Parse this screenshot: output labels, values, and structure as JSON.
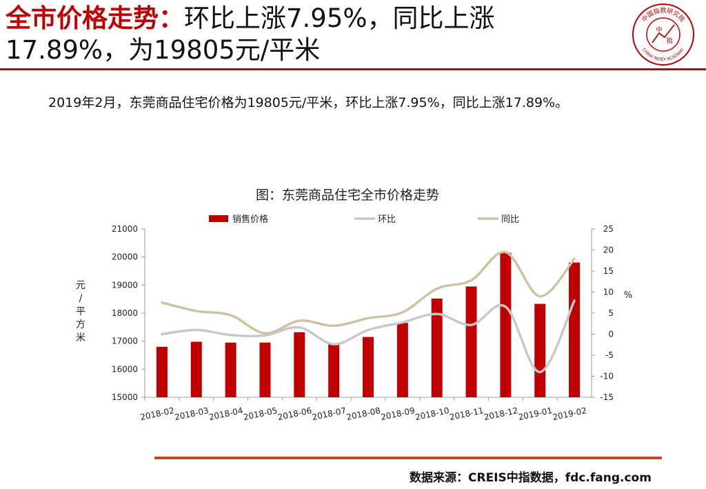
{
  "header": {
    "title_highlight": "全市价格走势：",
    "title_rest_line1": "环比上涨7.95%，同比上涨",
    "title_line2": "17.89%，为19805元/平米",
    "logo_text_top": "中国指数研究院",
    "logo_text_bottom": "CHINA INDEX ACADEMY",
    "logo_center_chars": [
      "中",
      "指"
    ],
    "accent_color": "#c00000"
  },
  "summary": "2019年2月，东莞商品住宅价格为19805元/平米，环比上涨7.95%，同比上涨17.89%。",
  "chart_data": {
    "type": "bar",
    "title": "图：东莞商品住宅全市价格走势",
    "categories": [
      "2018-02",
      "2018-03",
      "2018-04",
      "2018-05",
      "2018-06",
      "2018-07",
      "2018-08",
      "2018-09",
      "2018-10",
      "2018-11",
      "2018-12",
      "2019-01",
      "2019-02"
    ],
    "series": [
      {
        "name": "销售价格",
        "type": "bar",
        "axis": "left",
        "color": "#c00000",
        "values": [
          16800,
          16980,
          16950,
          16950,
          17320,
          16930,
          17150,
          17650,
          18520,
          18950,
          20150,
          18330,
          19805
        ]
      },
      {
        "name": "环比",
        "type": "line",
        "axis": "right",
        "color": "#c8c8c8",
        "values": [
          0,
          1,
          -0.2,
          -0.3,
          1.6,
          -2.4,
          1,
          2.8,
          4.8,
          2.2,
          6.5,
          -9,
          7.95
        ]
      },
      {
        "name": "同比",
        "type": "line",
        "axis": "right",
        "color": "#ccc4a0",
        "values": [
          7.5,
          5.5,
          4.5,
          0.2,
          3.2,
          2,
          3.8,
          5.2,
          10.8,
          12.8,
          19.5,
          9,
          17.89
        ]
      }
    ],
    "left_axis": {
      "label": "元/平方米",
      "ylim": [
        15000,
        21000
      ],
      "ticks": [
        15000,
        16000,
        17000,
        18000,
        19000,
        20000,
        21000
      ]
    },
    "right_axis": {
      "label": "%",
      "ylim": [
        -15,
        25
      ],
      "ticks": [
        -15,
        -10,
        -5,
        0,
        5,
        10,
        15,
        20,
        25
      ]
    },
    "legend_position": "top",
    "grid": false
  },
  "footer": {
    "source": "数据来源：CREIS中指数据，fdc.fang.com"
  }
}
